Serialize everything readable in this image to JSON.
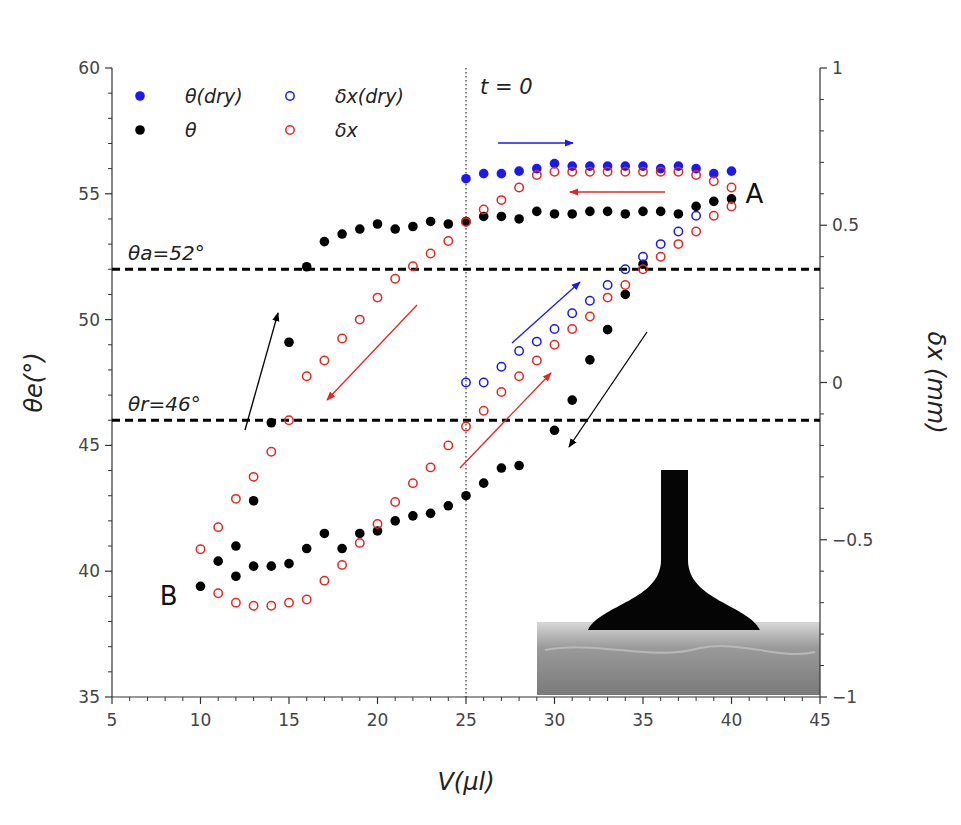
{
  "chart_data": {
    "type": "scatter",
    "x_label": "V(μl)",
    "y_label": "θe(°)",
    "y2_label": "δx (mm)",
    "xlim": [
      5,
      45
    ],
    "xticks": [
      5,
      10,
      15,
      20,
      25,
      30,
      35,
      40,
      45
    ],
    "ylim": [
      35,
      60
    ],
    "yticks": [
      35,
      40,
      45,
      50,
      55,
      60
    ],
    "y2lim": [
      -1,
      1
    ],
    "y2ticks": [
      {
        "value": -1,
        "label": "−1"
      },
      {
        "value": -0.5,
        "label": "−0.5"
      },
      0,
      0.5,
      1
    ],
    "legend": "upper left",
    "grid": false,
    "series": [
      {
        "name": "θ(dry)",
        "color": "#1a1af0",
        "marker": "circle",
        "x": [
          25,
          26,
          27,
          28,
          29,
          30,
          31,
          32,
          33,
          34,
          35,
          36,
          37,
          38,
          39,
          40
        ],
        "values": [
          55.6,
          55.8,
          55.8,
          55.9,
          56.0,
          56.2,
          56.1,
          56.1,
          56.1,
          56.1,
          56.1,
          56.0,
          56.1,
          56.0,
          55.8,
          55.9
        ]
      },
      {
        "name": "θ",
        "color": "#000000",
        "marker": "circle",
        "x": [
          10,
          11,
          12,
          13,
          14,
          15,
          16,
          17,
          18,
          19,
          20,
          21,
          22,
          23,
          24,
          25,
          26,
          27,
          28,
          30,
          31,
          32,
          33,
          34,
          35,
          12,
          13,
          14,
          15,
          16,
          17,
          18,
          19,
          20,
          21,
          22,
          23,
          24,
          25,
          26,
          27,
          28,
          29,
          30,
          31,
          32,
          33,
          34,
          35,
          36,
          37,
          38,
          39,
          40
        ],
        "values": [
          39.4,
          40.4,
          39.8,
          40.2,
          40.2,
          40.3,
          40.9,
          41.5,
          40.9,
          41.5,
          41.6,
          42.0,
          42.2,
          42.3,
          42.6,
          43.0,
          43.5,
          44.1,
          44.2,
          45.6,
          46.8,
          48.4,
          49.6,
          51.0,
          52.2,
          41.0,
          42.8,
          45.9,
          49.1,
          52.1,
          53.1,
          53.4,
          53.6,
          53.8,
          53.6,
          53.7,
          53.9,
          53.8,
          53.9,
          54.1,
          54.1,
          54.0,
          54.3,
          54.2,
          54.2,
          54.3,
          54.3,
          54.2,
          54.3,
          54.3,
          54.2,
          54.5,
          54.7,
          54.8
        ]
      },
      {
        "name": "δx(dry)",
        "color": "#1a1af0",
        "marker": "open-circle",
        "axis": "y2",
        "x": [
          25,
          26,
          27,
          28,
          29,
          30,
          31,
          32,
          33,
          34,
          35,
          36,
          37,
          38
        ],
        "values": [
          0.0,
          0.0,
          0.05,
          0.1,
          0.13,
          0.17,
          0.22,
          0.26,
          0.31,
          0.36,
          0.4,
          0.44,
          0.48,
          0.53
        ]
      },
      {
        "name": "δx",
        "color": "#e8261e",
        "marker": "open-circle",
        "axis": "y2",
        "x": [
          10,
          11,
          12,
          13,
          14,
          15,
          16,
          17,
          18,
          19,
          20,
          21,
          22,
          23,
          24,
          25,
          26,
          27,
          28,
          29,
          30,
          31,
          32,
          33,
          34,
          35,
          36,
          37,
          38,
          39,
          40,
          11,
          12,
          13,
          14,
          15,
          16,
          17,
          18,
          19,
          20,
          21,
          22,
          23,
          24,
          25,
          26,
          27,
          28,
          29,
          30,
          31,
          32,
          33,
          34,
          35,
          36,
          37,
          38,
          39,
          40
        ],
        "values": [
          -0.53,
          -0.46,
          -0.37,
          -0.3,
          -0.22,
          -0.12,
          0.02,
          0.07,
          0.14,
          0.2,
          0.27,
          0.33,
          0.37,
          0.41,
          0.45,
          0.51,
          0.55,
          0.58,
          0.62,
          0.66,
          0.67,
          0.67,
          0.67,
          0.67,
          0.67,
          0.67,
          0.67,
          0.67,
          0.66,
          0.64,
          0.62,
          -0.67,
          -0.7,
          -0.71,
          -0.71,
          -0.7,
          -0.69,
          -0.63,
          -0.58,
          -0.51,
          -0.45,
          -0.38,
          -0.32,
          -0.27,
          -0.2,
          -0.14,
          -0.09,
          -0.03,
          0.02,
          0.07,
          0.12,
          0.17,
          0.21,
          0.27,
          0.31,
          0.36,
          0.4,
          0.44,
          0.48,
          0.53,
          0.56
        ]
      }
    ],
    "annotations": [
      {
        "type": "hline",
        "y": 52,
        "text": "θa=52°"
      },
      {
        "type": "hline",
        "y": 46,
        "text": "θr=46°"
      },
      {
        "type": "vline",
        "x": 25,
        "text": "t = 0"
      },
      {
        "type": "label",
        "x": 41.3,
        "y": 55.0,
        "text": "A"
      },
      {
        "type": "label",
        "x": 8.2,
        "y": 39.0,
        "text": "B"
      }
    ]
  }
}
